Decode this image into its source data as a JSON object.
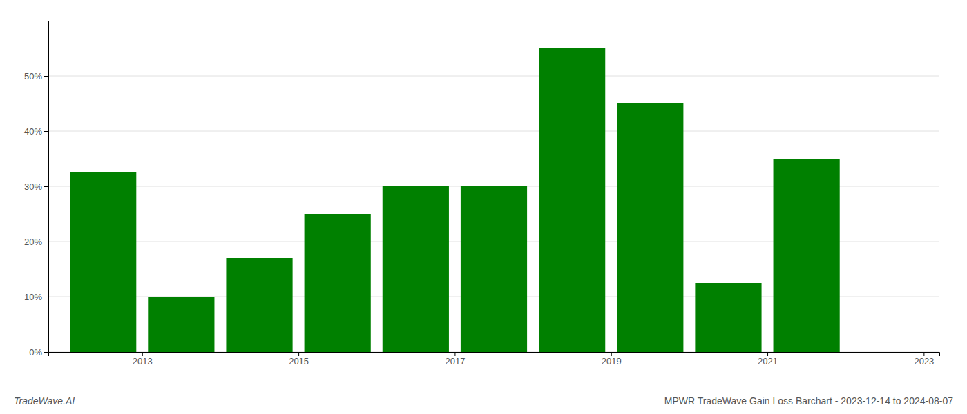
{
  "chart_data": {
    "type": "bar",
    "title": "MPWR TradeWave Gain Loss Barchart - 2023-12-14 to 2024-08-07",
    "annotations": [
      "TradeWave.AI"
    ],
    "x": [
      2013,
      2014,
      2015,
      2016,
      2017,
      2018,
      2019,
      2020,
      2021,
      2022
    ],
    "values": [
      0.325,
      0.1,
      0.17,
      0.25,
      0.3,
      0.3,
      0.55,
      0.45,
      0.125,
      0.35
    ],
    "color": "#008000",
    "xlim": [
      2012.3,
      2023.7
    ],
    "xticks": [
      {
        "value": 2013.5,
        "label": "2013"
      },
      {
        "value": 2015.5,
        "label": "2015"
      },
      {
        "value": 2017.5,
        "label": "2017"
      },
      {
        "value": 2019.5,
        "label": "2019"
      },
      {
        "value": 2021.5,
        "label": "2021"
      },
      {
        "value": 2023.5,
        "label": "2023"
      }
    ],
    "ylim": [
      0,
      0.6
    ],
    "yticks": [
      {
        "value": 0,
        "label": "0%"
      },
      {
        "value": 0.1,
        "label": "10%"
      },
      {
        "value": 0.2,
        "label": "20%"
      },
      {
        "value": 0.3,
        "label": "30%"
      },
      {
        "value": 0.4,
        "label": "40%"
      },
      {
        "value": 0.5,
        "label": "50%"
      }
    ],
    "grid": true
  }
}
